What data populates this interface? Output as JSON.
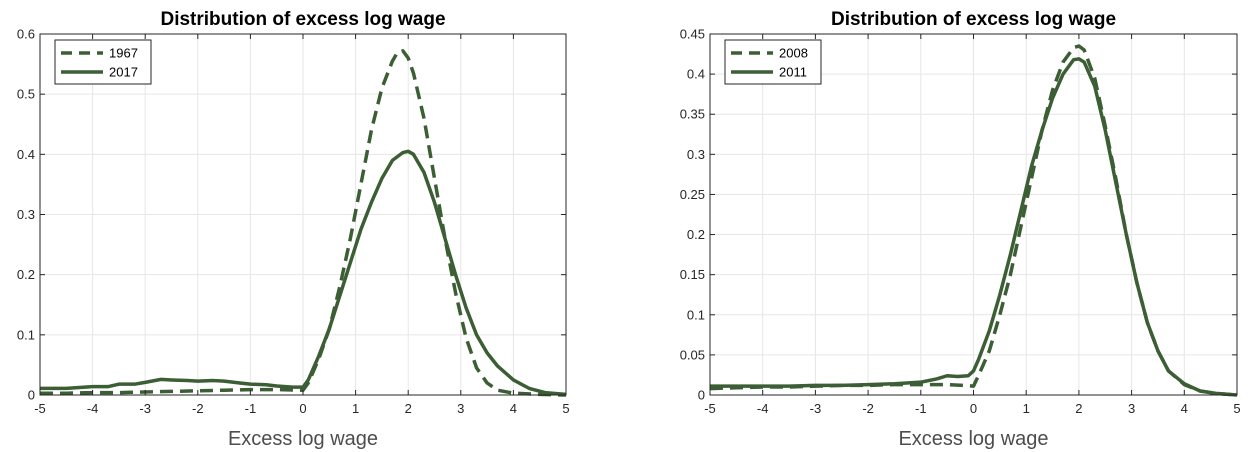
{
  "colors": {
    "series": "#3c5e34",
    "grid": "#e6e6e6",
    "axis": "#262626"
  },
  "chart_data": [
    {
      "type": "line",
      "title": "Distribution of excess log wage",
      "xlabel": "Excess log wage",
      "ylabel": "",
      "xlim": [
        -5,
        5
      ],
      "ylim": [
        0,
        0.6
      ],
      "xticks": [
        -5,
        -4,
        -3,
        -2,
        -1,
        0,
        1,
        2,
        3,
        4,
        5
      ],
      "yticks": [
        0,
        0.1,
        0.2,
        0.3,
        0.4,
        0.5,
        0.6
      ],
      "ytick_labels": [
        "0",
        "0.1",
        "0.2",
        "0.3",
        "0.4",
        "0.5",
        "0.6"
      ],
      "grid": true,
      "legend_position": "top-left",
      "series": [
        {
          "name": "1967",
          "style": "dashed",
          "x": [
            -5,
            -4.5,
            -4,
            -3.5,
            -3,
            -2.5,
            -2,
            -1.5,
            -1,
            -0.5,
            0,
            0.1,
            0.3,
            0.5,
            0.7,
            0.9,
            1.1,
            1.3,
            1.5,
            1.7,
            1.8,
            1.9,
            2.0,
            2.1,
            2.3,
            2.5,
            2.7,
            2.9,
            3.1,
            3.3,
            3.5,
            3.7,
            4.0,
            4.5,
            5
          ],
          "y": [
            0.003,
            0.003,
            0.004,
            0.004,
            0.005,
            0.006,
            0.007,
            0.008,
            0.009,
            0.009,
            0.008,
            0.02,
            0.06,
            0.11,
            0.18,
            0.26,
            0.35,
            0.44,
            0.51,
            0.555,
            0.57,
            0.572,
            0.56,
            0.535,
            0.46,
            0.36,
            0.26,
            0.17,
            0.095,
            0.045,
            0.02,
            0.008,
            0.003,
            0.001,
            0.0
          ]
        },
        {
          "name": "2017",
          "style": "solid",
          "x": [
            -5,
            -4.5,
            -4,
            -3.7,
            -3.5,
            -3.2,
            -3,
            -2.7,
            -2.5,
            -2.2,
            -2,
            -1.7,
            -1.5,
            -1.2,
            -1,
            -0.7,
            -0.5,
            -0.2,
            0,
            0.1,
            0.3,
            0.5,
            0.7,
            0.9,
            1.1,
            1.3,
            1.5,
            1.7,
            1.9,
            2.0,
            2.1,
            2.3,
            2.5,
            2.7,
            2.9,
            3.1,
            3.3,
            3.5,
            3.7,
            4.0,
            4.3,
            4.6,
            5
          ],
          "y": [
            0.011,
            0.011,
            0.014,
            0.014,
            0.018,
            0.018,
            0.021,
            0.026,
            0.025,
            0.024,
            0.023,
            0.024,
            0.023,
            0.02,
            0.018,
            0.017,
            0.015,
            0.013,
            0.013,
            0.025,
            0.065,
            0.11,
            0.165,
            0.22,
            0.275,
            0.32,
            0.36,
            0.39,
            0.403,
            0.405,
            0.4,
            0.37,
            0.32,
            0.26,
            0.2,
            0.145,
            0.1,
            0.07,
            0.048,
            0.025,
            0.011,
            0.004,
            0.001
          ]
        }
      ]
    },
    {
      "type": "line",
      "title": "Distribution of excess log wage",
      "xlabel": "Excess log wage",
      "ylabel": "",
      "xlim": [
        -5,
        5
      ],
      "ylim": [
        0,
        0.45
      ],
      "xticks": [
        -5,
        -4,
        -3,
        -2,
        -1,
        0,
        1,
        2,
        3,
        4,
        5
      ],
      "yticks": [
        0,
        0.05,
        0.1,
        0.15,
        0.2,
        0.25,
        0.3,
        0.35,
        0.4,
        0.45
      ],
      "ytick_labels": [
        "0",
        "0.05",
        "0.1",
        "0.15",
        "0.2",
        "0.25",
        "0.3",
        "0.35",
        "0.4",
        "0.45"
      ],
      "grid": true,
      "legend_position": "top-left",
      "series": [
        {
          "name": "2008",
          "style": "dashed",
          "x": [
            -5,
            -4.5,
            -4,
            -3.5,
            -3,
            -2.5,
            -2,
            -1.5,
            -1,
            -0.5,
            -0.2,
            0,
            0.1,
            0.3,
            0.5,
            0.7,
            0.9,
            1.1,
            1.3,
            1.5,
            1.7,
            1.9,
            2.0,
            2.1,
            2.3,
            2.5,
            2.7,
            2.9,
            3.1,
            3.3,
            3.5,
            3.7,
            4.0,
            4.3,
            4.6,
            5
          ],
          "y": [
            0.008,
            0.009,
            0.01,
            0.01,
            0.011,
            0.012,
            0.012,
            0.013,
            0.013,
            0.013,
            0.012,
            0.011,
            0.025,
            0.055,
            0.1,
            0.15,
            0.21,
            0.27,
            0.33,
            0.38,
            0.415,
            0.433,
            0.435,
            0.43,
            0.395,
            0.335,
            0.27,
            0.2,
            0.14,
            0.09,
            0.055,
            0.03,
            0.013,
            0.005,
            0.002,
            0.0
          ]
        },
        {
          "name": "2011",
          "style": "solid",
          "x": [
            -5,
            -4.5,
            -4,
            -3.5,
            -3,
            -2.5,
            -2,
            -1.5,
            -1,
            -0.7,
            -0.5,
            -0.3,
            -0.1,
            0,
            0.1,
            0.3,
            0.5,
            0.7,
            0.9,
            1.1,
            1.3,
            1.5,
            1.7,
            1.9,
            2.0,
            2.1,
            2.3,
            2.5,
            2.7,
            2.9,
            3.1,
            3.3,
            3.5,
            3.7,
            4.0,
            4.3,
            4.6,
            5
          ],
          "y": [
            0.011,
            0.011,
            0.011,
            0.011,
            0.012,
            0.012,
            0.013,
            0.014,
            0.016,
            0.02,
            0.024,
            0.023,
            0.024,
            0.03,
            0.045,
            0.08,
            0.125,
            0.175,
            0.23,
            0.285,
            0.33,
            0.37,
            0.4,
            0.418,
            0.419,
            0.415,
            0.385,
            0.33,
            0.265,
            0.2,
            0.14,
            0.09,
            0.055,
            0.03,
            0.014,
            0.005,
            0.002,
            0.0
          ]
        }
      ]
    }
  ]
}
